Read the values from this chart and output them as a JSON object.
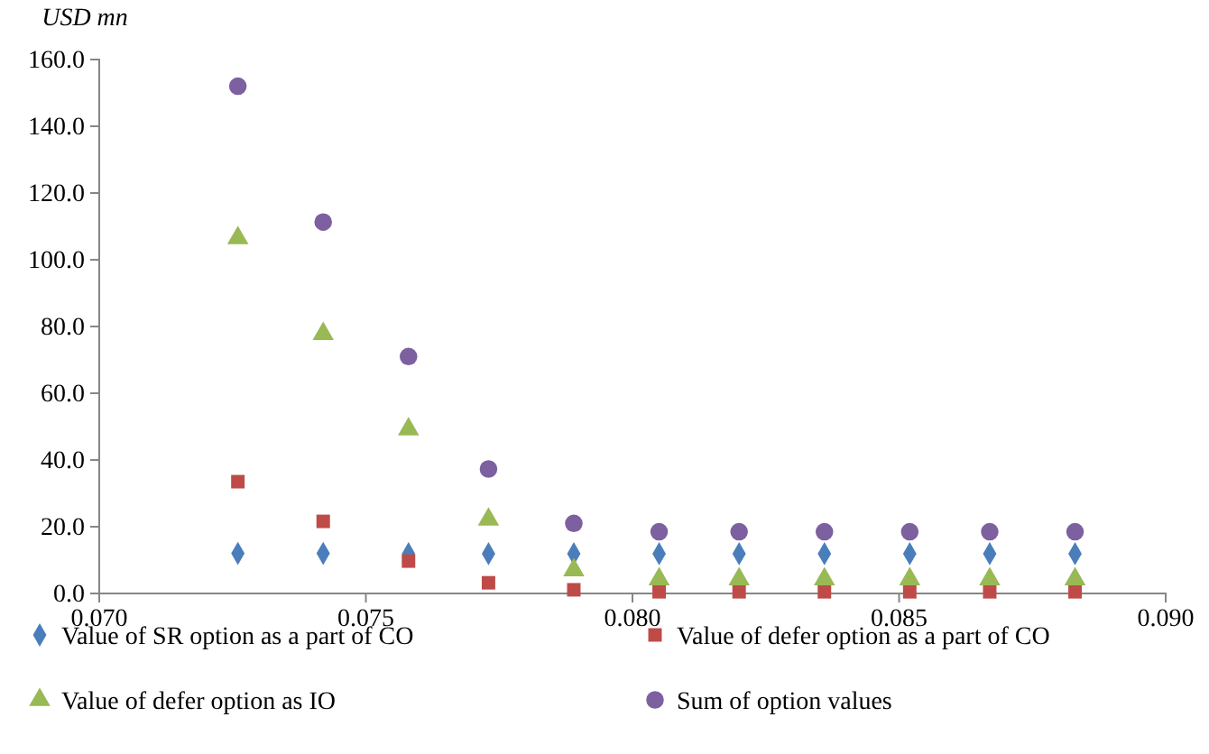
{
  "chart_data": {
    "type": "scatter",
    "ylabel": "USD mn",
    "x": [
      0.0726,
      0.0742,
      0.0758,
      0.0773,
      0.0789,
      0.0805,
      0.082,
      0.0836,
      0.0852,
      0.0867,
      0.0883
    ],
    "series": [
      {
        "name": "Value of SR option as a part of CO",
        "color": "#4a7ebb",
        "marker": "diamond",
        "values": [
          12.0,
          12.0,
          11.9,
          11.9,
          11.9,
          11.9,
          11.9,
          11.9,
          11.9,
          11.9,
          11.9
        ]
      },
      {
        "name": "Value of defer option as a part of CO",
        "color": "#be4b48",
        "marker": "square",
        "values": [
          33.5,
          21.6,
          9.7,
          3.2,
          1.1,
          0.5,
          0.5,
          0.5,
          0.5,
          0.5,
          0.5
        ]
      },
      {
        "name": "Value of defer option as IO",
        "color": "#98b954",
        "marker": "triangle",
        "values": [
          106.5,
          77.8,
          49.2,
          22.2,
          7.0,
          4.3,
          4.3,
          4.3,
          4.3,
          4.3,
          4.3
        ]
      },
      {
        "name": "Sum of option values",
        "color": "#7d60a0",
        "marker": "circle",
        "values": [
          152.0,
          111.3,
          71.0,
          37.3,
          21.0,
          18.5,
          18.5,
          18.5,
          18.5,
          18.5,
          18.5
        ]
      }
    ],
    "xlim": [
      0.07,
      0.09
    ],
    "xticks": [
      {
        "value": 0.07,
        "label": "0.070"
      },
      {
        "value": 0.075,
        "label": "0.075"
      },
      {
        "value": 0.08,
        "label": "0.080"
      },
      {
        "value": 0.085,
        "label": "0.085"
      },
      {
        "value": 0.09,
        "label": "0.090"
      }
    ],
    "ylim": [
      0,
      160
    ],
    "yticks": [
      {
        "value": 0,
        "label": "0.0"
      },
      {
        "value": 20,
        "label": "20.0"
      },
      {
        "value": 40,
        "label": "40.0"
      },
      {
        "value": 60,
        "label": "60.0"
      },
      {
        "value": 80,
        "label": "80.0"
      },
      {
        "value": 100,
        "label": "100.0"
      },
      {
        "value": 120,
        "label": "120.0"
      },
      {
        "value": 140,
        "label": "140.0"
      },
      {
        "value": 160,
        "label": "160.0"
      }
    ],
    "grid": false,
    "legend": "bottom"
  }
}
